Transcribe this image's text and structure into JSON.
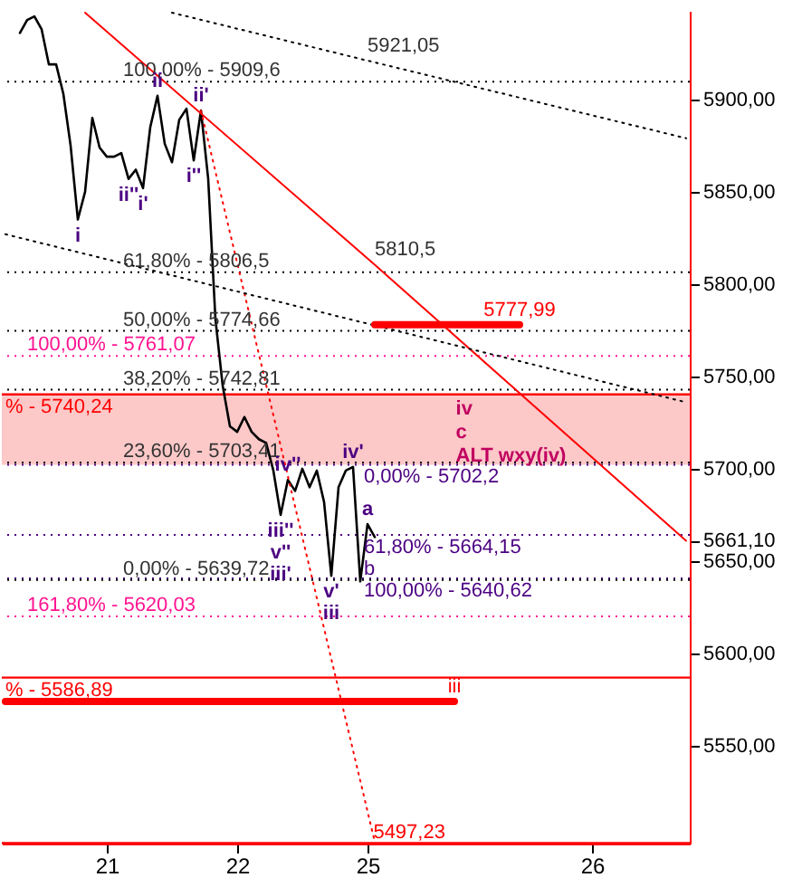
{
  "chart_data": {
    "type": "line",
    "categories": [
      null,
      null,
      null,
      null,
      null,
      null,
      null,
      null,
      null,
      null,
      null,
      null,
      null,
      null,
      "21",
      null,
      null,
      null,
      null,
      null,
      null,
      null,
      null,
      null,
      null,
      null,
      null,
      null,
      null,
      null,
      null,
      null,
      "22",
      null,
      null,
      null,
      null,
      null,
      null,
      null,
      null,
      null,
      null,
      null,
      null,
      null,
      null,
      null,
      null,
      null,
      "25",
      null,
      null,
      null,
      null,
      null,
      null,
      null,
      null,
      null,
      null,
      null,
      null,
      null,
      null,
      null,
      null,
      null,
      null,
      null,
      null,
      null,
      null,
      null,
      null,
      null,
      null,
      null,
      null,
      null,
      null,
      "26",
      null,
      null,
      null,
      null,
      null,
      null,
      null,
      null,
      null,
      null,
      null,
      null,
      null
    ],
    "ylim": [
      5497,
      5948
    ],
    "yticks": [
      {
        "value": 5550,
        "label": "5550,00"
      },
      {
        "value": 5600,
        "label": "5600,00"
      },
      {
        "value": 5650,
        "label": "5650,00"
      },
      {
        "value": 5661.1,
        "label": "5661,10"
      },
      {
        "value": 5700,
        "label": "5700,00"
      },
      {
        "value": 5750,
        "label": "5750,00"
      },
      {
        "value": 5800,
        "label": "5800,00"
      },
      {
        "value": 5850,
        "label": "5850,00"
      },
      {
        "value": 5900,
        "label": "5900,00"
      }
    ],
    "series": [
      {
        "color": "#000000",
        "line_style": "solid",
        "values": [
          null,
          null,
          5936,
          5943,
          5945,
          5938,
          5919,
          5919,
          5903,
          5875,
          5835,
          5850,
          5890,
          5874,
          5869,
          5869,
          5871,
          5857,
          5862,
          5852,
          5885,
          5902,
          5876,
          5866,
          5889,
          5895,
          5867,
          5894,
          5857,
          5781,
          5745,
          5723,
          5720,
          5728,
          5720,
          5716,
          5714,
          5699,
          5675,
          5694,
          5688,
          5700,
          5690,
          5699,
          5682,
          5642,
          5690,
          5699,
          5701,
          5639,
          5670,
          5663,
          null,
          null,
          null,
          null,
          null,
          null,
          null,
          null,
          null,
          null,
          null,
          null,
          null,
          null,
          null,
          null,
          null,
          null,
          null,
          null,
          null,
          null,
          null,
          null,
          null,
          null,
          null,
          null,
          null,
          null,
          null,
          null,
          null,
          null,
          null,
          null,
          null,
          null,
          null,
          null,
          null,
          null,
          null
        ]
      },
      {
        "color": "#ff0000",
        "line_style": "solid",
        "values": [
          null,
          null,
          null,
          null,
          null,
          null,
          null,
          null,
          null,
          null,
          null,
          5947,
          null,
          null,
          null,
          null,
          null,
          null,
          null,
          null,
          null,
          null,
          null,
          null,
          null,
          null,
          null,
          null,
          null,
          null,
          null,
          null,
          null,
          null,
          null,
          null,
          null,
          null,
          null,
          null,
          null,
          null,
          null,
          null,
          null,
          null,
          null,
          null,
          null,
          null,
          null,
          5810.5,
          null,
          null,
          null,
          null,
          null,
          null,
          null,
          null,
          null,
          null,
          null,
          null,
          null,
          null,
          null,
          null,
          null,
          null,
          null,
          null,
          null,
          null,
          null,
          null,
          null,
          null,
          null,
          null,
          null,
          null,
          null,
          null,
          null,
          null,
          null,
          null,
          null,
          null,
          null,
          null,
          null,
          null,
          5661
        ]
      },
      {
        "color": "#ff0000",
        "line_style": "dotted",
        "values": [
          null,
          null,
          null,
          null,
          null,
          null,
          null,
          null,
          null,
          null,
          null,
          null,
          null,
          null,
          null,
          null,
          null,
          null,
          null,
          null,
          null,
          null,
          null,
          null,
          null,
          null,
          null,
          5894,
          null,
          null,
          null,
          null,
          null,
          null,
          null,
          null,
          null,
          null,
          null,
          null,
          null,
          null,
          null,
          null,
          null,
          null,
          null,
          null,
          null,
          null,
          null,
          5498,
          null,
          null,
          null,
          null,
          null,
          null,
          null,
          null,
          null,
          null,
          null,
          null,
          null,
          null,
          null,
          null,
          null,
          null,
          null,
          null,
          null,
          null,
          null,
          null,
          null,
          null,
          null,
          null,
          null,
          null,
          null,
          null,
          null,
          null,
          null,
          null,
          null,
          null,
          null,
          null,
          null,
          null,
          null
        ]
      },
      {
        "color": "#000000",
        "line_style": "dotted",
        "values": [
          5827,
          null,
          null,
          null,
          null,
          null,
          null,
          null,
          null,
          null,
          null,
          null,
          null,
          null,
          null,
          null,
          null,
          null,
          null,
          null,
          null,
          null,
          null,
          null,
          null,
          null,
          null,
          null,
          null,
          null,
          null,
          null,
          null,
          null,
          null,
          null,
          null,
          null,
          null,
          null,
          null,
          null,
          null,
          null,
          null,
          null,
          null,
          null,
          null,
          null,
          null,
          null,
          null,
          null,
          null,
          null,
          null,
          null,
          null,
          null,
          null,
          null,
          null,
          null,
          null,
          null,
          null,
          null,
          null,
          null,
          null,
          null,
          null,
          null,
          null,
          null,
          null,
          null,
          null,
          null,
          null,
          null,
          null,
          null,
          null,
          null,
          null,
          null,
          null,
          null,
          null,
          null,
          null,
          null,
          5736
        ]
      },
      {
        "color": "#000000",
        "line_style": "dotted",
        "values": [
          null,
          null,
          null,
          null,
          null,
          null,
          null,
          null,
          null,
          null,
          null,
          null,
          null,
          null,
          null,
          null,
          null,
          null,
          null,
          null,
          null,
          null,
          null,
          5947,
          null,
          null,
          null,
          null,
          null,
          null,
          null,
          null,
          null,
          null,
          null,
          null,
          null,
          null,
          null,
          null,
          null,
          null,
          null,
          null,
          null,
          null,
          null,
          null,
          null,
          null,
          5921.05,
          null,
          null,
          null,
          null,
          null,
          null,
          null,
          null,
          null,
          null,
          null,
          null,
          null,
          null,
          null,
          null,
          null,
          null,
          null,
          null,
          null,
          null,
          null,
          null,
          null,
          null,
          null,
          null,
          null,
          null,
          null,
          null,
          null,
          null,
          null,
          null,
          null,
          null,
          null,
          null,
          null,
          null,
          null,
          5879
        ]
      },
      {
        "color": "#ff0000",
        "line_style": "solid",
        "values": [
          null,
          null,
          null,
          null,
          null,
          null,
          null,
          null,
          null,
          null,
          null,
          null,
          null,
          null,
          null,
          null,
          null,
          null,
          null,
          null,
          null,
          null,
          null,
          null,
          null,
          null,
          null,
          null,
          null,
          null,
          null,
          null,
          null,
          null,
          null,
          null,
          null,
          null,
          null,
          null,
          null,
          null,
          null,
          null,
          null,
          null,
          null,
          null,
          null,
          null,
          null,
          5777.99,
          null,
          null,
          null,
          null,
          null,
          null,
          null,
          null,
          null,
          null,
          null,
          null,
          null,
          null,
          null,
          null,
          null,
          null,
          null,
          5777.99,
          null,
          null,
          null,
          null,
          null,
          null,
          null,
          null,
          null,
          null,
          null,
          null,
          null,
          null,
          null,
          null,
          null,
          null,
          null,
          null,
          null,
          null,
          null
        ]
      },
      {
        "color": "#ff0000",
        "line_style": "solid",
        "values": [
          5574,
          null,
          null,
          null,
          null,
          null,
          null,
          null,
          null,
          null,
          null,
          null,
          null,
          null,
          null,
          null,
          null,
          null,
          null,
          null,
          null,
          null,
          null,
          null,
          null,
          null,
          null,
          null,
          null,
          null,
          null,
          null,
          null,
          null,
          null,
          null,
          null,
          null,
          null,
          null,
          null,
          null,
          null,
          null,
          null,
          null,
          null,
          null,
          null,
          null,
          null,
          null,
          null,
          null,
          null,
          null,
          null,
          null,
          null,
          null,
          null,
          null,
          5574,
          null,
          null,
          null,
          null,
          null,
          null,
          null,
          null,
          null,
          null,
          null,
          null,
          null,
          null,
          null,
          null,
          null,
          null,
          null,
          null,
          null,
          null,
          null,
          null,
          null,
          null,
          null,
          null,
          null,
          null,
          null,
          null
        ]
      }
    ],
    "ref_lines": [
      {
        "axis": "y",
        "value": 5909.6,
        "color": "#000000",
        "line_style": "dotted"
      },
      {
        "axis": "y",
        "value": 5806.5,
        "color": "#000000",
        "line_style": "dotted"
      },
      {
        "axis": "y",
        "value": 5774.66,
        "color": "#000000",
        "line_style": "dotted"
      },
      {
        "axis": "y",
        "value": 5761.07,
        "color": "#ff1493",
        "line_style": "dotted"
      },
      {
        "axis": "y",
        "value": 5742.81,
        "color": "#000000",
        "line_style": "dotted"
      },
      {
        "axis": "y",
        "value": 5740.24,
        "color": "#ff0000",
        "line_style": "solid"
      },
      {
        "axis": "y",
        "value": 5703.41,
        "color": "#000000",
        "line_style": "dotted"
      },
      {
        "axis": "y",
        "value": 5702.2,
        "color": "#4b0082",
        "line_style": "dotted"
      },
      {
        "axis": "y",
        "value": 5664.15,
        "color": "#4b0082",
        "line_style": "dotted"
      },
      {
        "axis": "y",
        "value": 5640.62,
        "color": "#4b0082",
        "line_style": "dotted"
      },
      {
        "axis": "y",
        "value": 5639.72,
        "color": "#000000",
        "line_style": "dotted"
      },
      {
        "axis": "y",
        "value": 5620.03,
        "color": "#ff1493",
        "line_style": "dotted"
      },
      {
        "axis": "y",
        "value": 5586.89,
        "color": "#ff0000",
        "line_style": "solid"
      },
      {
        "axis": "y",
        "value": 5497.23,
        "color": "#ff0000",
        "line_style": "solid"
      }
    ],
    "bands": [
      {
        "axis": "y",
        "from": 5702.2,
        "to": 5740.24,
        "color": "#fcc8c8"
      }
    ],
    "annotations": [
      {
        "text": "100,00% - 5909,6",
        "y": 5909.6
      },
      {
        "text": "61,80% - 5806,5",
        "y": 5806.5
      },
      {
        "text": "50,00% - 5774,66",
        "y": 5774.66
      },
      {
        "text": "100,00% - 5761,07",
        "y": 5761.07
      },
      {
        "text": "38,20% - 5742,81",
        "y": 5742.81
      },
      {
        "text": "% - 5740,24",
        "y": 5740.24
      },
      {
        "text": "23,60% - 5703,41",
        "y": 5703.41
      },
      {
        "text": "0,00% - 5702,2",
        "y": 5702.2
      },
      {
        "text": "61,80% - 5664,15",
        "y": 5664.15
      },
      {
        "text": "100,00% - 5640,62",
        "y": 5640.62
      },
      {
        "text": "0,00% - 5639,72",
        "y": 5639.72
      },
      {
        "text": "161,80% - 5620,03",
        "y": 5620.03
      },
      {
        "text": "% - 5586,89",
        "y": 5586.89
      },
      {
        "text": "5497,23",
        "y": 5497.23
      },
      {
        "text": "5921,05",
        "y": 5921.05
      },
      {
        "text": "5810,5",
        "y": 5810.5
      },
      {
        "text": "5777,99",
        "y": 5777.99
      },
      {
        "text": "i",
        "y": 5835
      },
      {
        "text": "ii",
        "y": 5902
      },
      {
        "text": "ii'",
        "y": 5894
      },
      {
        "text": "ii''",
        "y": 5857
      },
      {
        "text": "i'",
        "y": 5852
      },
      {
        "text": "i''",
        "y": 5867
      },
      {
        "text": "iv''",
        "y": 5694
      },
      {
        "text": "iii''",
        "y": 5675
      },
      {
        "text": "v''",
        "y": 5675
      },
      {
        "text": "iii'",
        "y": 5675
      },
      {
        "text": "v'",
        "y": 5642
      },
      {
        "text": "iii",
        "y": 5642
      },
      {
        "text": "iv'",
        "y": 5701
      },
      {
        "text": "a",
        "y": 5670
      },
      {
        "text": "b",
        "y": 5664.15
      },
      "iv",
      "c",
      "ALT wxy(iv)",
      {
        "text": "iii",
        "y": 5574
      }
    ]
  }
}
